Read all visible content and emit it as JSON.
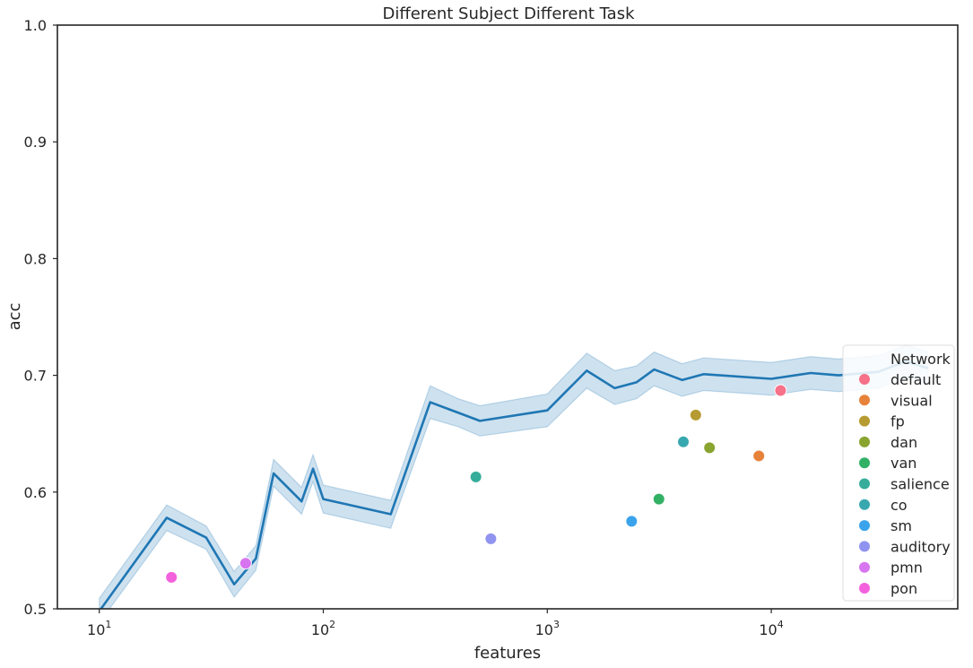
{
  "chart_data": {
    "type": "line",
    "title": "Different Subject Different Task",
    "xlabel": "features",
    "ylabel": "acc",
    "x_scale": "log",
    "xlim": [
      6.5,
      68000
    ],
    "ylim": [
      0.5,
      1.0
    ],
    "x_ticks": [
      {
        "value": 10,
        "base": "10",
        "exp": "1"
      },
      {
        "value": 100,
        "base": "10",
        "exp": "2"
      },
      {
        "value": 1000,
        "base": "10",
        "exp": "3"
      },
      {
        "value": 10000,
        "base": "10",
        "exp": "4"
      }
    ],
    "y_ticks": [
      {
        "value": 0.5,
        "label": "0.5"
      },
      {
        "value": 0.6,
        "label": "0.6"
      },
      {
        "value": 0.7,
        "label": "0.7"
      },
      {
        "value": 0.8,
        "label": "0.8"
      },
      {
        "value": 0.9,
        "label": "0.9"
      },
      {
        "value": 1.0,
        "label": "1.0"
      }
    ],
    "grid": false,
    "line_color": "#1f77b4",
    "band_color": "#1f77b4",
    "line_series": {
      "x": [
        10,
        20,
        30,
        40,
        50,
        60,
        80,
        90,
        100,
        200,
        300,
        400,
        500,
        1000,
        1500,
        2000,
        2500,
        3000,
        4000,
        5000,
        10000,
        15000,
        20000,
        30000,
        40000,
        50000
      ],
      "y": [
        0.498,
        0.578,
        0.561,
        0.521,
        0.543,
        0.616,
        0.592,
        0.62,
        0.594,
        0.581,
        0.677,
        0.668,
        0.661,
        0.67,
        0.704,
        0.689,
        0.694,
        0.705,
        0.696,
        0.701,
        0.697,
        0.702,
        0.7,
        0.703,
        0.712,
        0.706
      ],
      "ci_lower": [
        0.488,
        0.567,
        0.551,
        0.51,
        0.533,
        0.605,
        0.581,
        0.609,
        0.582,
        0.569,
        0.663,
        0.656,
        0.648,
        0.656,
        0.689,
        0.675,
        0.68,
        0.691,
        0.682,
        0.687,
        0.683,
        0.688,
        0.686,
        0.689,
        0.698,
        0.693
      ],
      "ci_upper": [
        0.509,
        0.589,
        0.571,
        0.532,
        0.554,
        0.628,
        0.604,
        0.632,
        0.606,
        0.593,
        0.691,
        0.68,
        0.674,
        0.684,
        0.719,
        0.704,
        0.708,
        0.72,
        0.71,
        0.715,
        0.711,
        0.716,
        0.714,
        0.717,
        0.726,
        0.72
      ]
    },
    "scatter_points": [
      {
        "name": "default",
        "x": 11000,
        "y": 0.687,
        "color": "#f77189"
      },
      {
        "name": "visual",
        "x": 8800,
        "y": 0.631,
        "color": "#e7823a"
      },
      {
        "name": "fp",
        "x": 4600,
        "y": 0.666,
        "color": "#b59b31"
      },
      {
        "name": "dan",
        "x": 5300,
        "y": 0.638,
        "color": "#89a42f"
      },
      {
        "name": "van",
        "x": 3150,
        "y": 0.594,
        "color": "#32b165"
      },
      {
        "name": "salience",
        "x": 480,
        "y": 0.613,
        "color": "#36ad9a"
      },
      {
        "name": "co",
        "x": 4050,
        "y": 0.643,
        "color": "#38a8b0"
      },
      {
        "name": "sm",
        "x": 2380,
        "y": 0.575,
        "color": "#3ba3ec"
      },
      {
        "name": "auditory",
        "x": 560,
        "y": 0.56,
        "color": "#9093f0"
      },
      {
        "name": "pmn",
        "x": 45,
        "y": 0.539,
        "color": "#d774f0"
      },
      {
        "name": "pon",
        "x": 21,
        "y": 0.527,
        "color": "#f461dd"
      }
    ],
    "legend": {
      "title": "Network",
      "placement": "lower-right",
      "entries": [
        "default",
        "visual",
        "fp",
        "dan",
        "van",
        "salience",
        "co",
        "sm",
        "auditory",
        "pmn",
        "pon"
      ]
    }
  }
}
